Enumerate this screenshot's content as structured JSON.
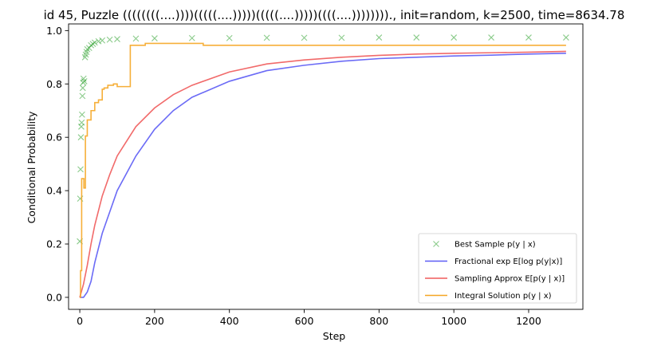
{
  "chart_data": {
    "type": "line",
    "title": "id 45, Puzzle ((((((((....))))(((((....)))))(((((....)))))((((....))))))))., init=random, k=2500, time=8634.78",
    "xlabel": "Step",
    "ylabel": "Conditional Probability",
    "xlim": [
      -30,
      1345
    ],
    "ylim": [
      -0.045,
      1.025
    ],
    "x_ticks": [
      0,
      200,
      400,
      600,
      800,
      1000,
      1200
    ],
    "x_tick_labels": [
      "0",
      "200",
      "400",
      "600",
      "800",
      "1000",
      "1200"
    ],
    "y_ticks": [
      0.0,
      0.2,
      0.4,
      0.6,
      0.8,
      1.0
    ],
    "y_tick_labels": [
      "0.0",
      "0.2",
      "0.4",
      "0.6",
      "0.8",
      "1.0"
    ],
    "grid": false,
    "legend_position": "lower-right",
    "series": [
      {
        "name": "Best Sample p(y | x)",
        "style": "scatter-x",
        "color": "#2ca02c",
        "x": [
          0,
          1,
          2,
          3,
          4,
          5,
          6,
          7,
          8,
          9,
          10,
          12,
          14,
          16,
          18,
          20,
          25,
          30,
          35,
          40,
          50,
          60,
          80,
          100,
          150,
          200,
          300,
          400,
          500,
          600,
          700,
          800,
          900,
          1000,
          1100,
          1200,
          1300
        ],
        "y": [
          0.21,
          0.37,
          0.48,
          0.6,
          0.64,
          0.655,
          0.685,
          0.755,
          0.785,
          0.805,
          0.82,
          0.81,
          0.9,
          0.91,
          0.92,
          0.93,
          0.935,
          0.945,
          0.95,
          0.955,
          0.96,
          0.963,
          0.966,
          0.968,
          0.97,
          0.971,
          0.972,
          0.972,
          0.973,
          0.973,
          0.973,
          0.974,
          0.974,
          0.974,
          0.974,
          0.974,
          0.974
        ]
      },
      {
        "name": "Fractional exp E[log p(y|x)]",
        "style": "line",
        "color": "#5b5bf5",
        "x": [
          0,
          10,
          20,
          30,
          40,
          60,
          80,
          100,
          150,
          200,
          250,
          300,
          400,
          500,
          600,
          700,
          800,
          900,
          1000,
          1100,
          1200,
          1300
        ],
        "y": [
          0.0,
          0.0,
          0.02,
          0.06,
          0.13,
          0.24,
          0.32,
          0.4,
          0.53,
          0.63,
          0.7,
          0.75,
          0.81,
          0.85,
          0.87,
          0.885,
          0.895,
          0.9,
          0.905,
          0.908,
          0.912,
          0.915
        ]
      },
      {
        "name": "Sampling Approx E[p(y | x)]",
        "style": "line",
        "color": "#f05a5a",
        "x": [
          0,
          10,
          20,
          30,
          40,
          60,
          80,
          100,
          150,
          200,
          250,
          300,
          400,
          500,
          600,
          700,
          800,
          900,
          1000,
          1100,
          1200,
          1300
        ],
        "y": [
          0.0,
          0.05,
          0.12,
          0.2,
          0.27,
          0.38,
          0.46,
          0.53,
          0.64,
          0.71,
          0.76,
          0.795,
          0.845,
          0.875,
          0.89,
          0.9,
          0.907,
          0.912,
          0.915,
          0.917,
          0.919,
          0.922
        ]
      },
      {
        "name": "Integral Solution p(y | x)",
        "style": "step",
        "color": "#f5a623",
        "x": [
          0,
          2,
          5,
          8,
          11,
          15,
          20,
          30,
          40,
          50,
          60,
          65,
          75,
          90,
          100,
          130,
          135,
          170,
          175,
          320,
          330,
          1300
        ],
        "y": [
          0.0,
          0.1,
          0.445,
          0.445,
          0.41,
          0.605,
          0.665,
          0.7,
          0.73,
          0.74,
          0.78,
          0.785,
          0.795,
          0.8,
          0.79,
          0.79,
          0.945,
          0.945,
          0.952,
          0.952,
          0.945,
          0.945
        ]
      }
    ]
  }
}
